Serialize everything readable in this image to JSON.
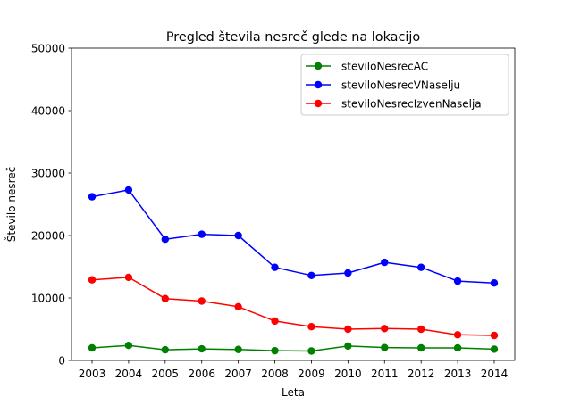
{
  "chart_data": {
    "type": "line",
    "title": "Pregled števila nesreč glede na lokacijo",
    "xlabel": "Leta",
    "ylabel": "Število nesreč",
    "x": [
      2003,
      2004,
      2005,
      2006,
      2007,
      2008,
      2009,
      2010,
      2011,
      2012,
      2013,
      2014
    ],
    "ylim": [
      0,
      50000
    ],
    "yticks": [
      0,
      10000,
      20000,
      30000,
      40000,
      50000
    ],
    "grid": false,
    "legend_position": "top-right",
    "series": [
      {
        "name": "steviloNesrecAC",
        "color": "#008000",
        "values": [
          2000,
          2400,
          1700,
          1850,
          1750,
          1550,
          1500,
          2300,
          2050,
          2000,
          2000,
          1800
        ]
      },
      {
        "name": "steviloNesrecVNaselju",
        "color": "#0000ff",
        "values": [
          26200,
          27300,
          19400,
          20200,
          20000,
          14900,
          13600,
          14000,
          15700,
          14900,
          12700,
          12400
        ]
      },
      {
        "name": "steviloNesrecIzvenNaselja",
        "color": "#ff0000",
        "values": [
          12900,
          13300,
          9900,
          9500,
          8600,
          6300,
          5400,
          5000,
          5100,
          5000,
          4100,
          4000
        ]
      }
    ]
  }
}
